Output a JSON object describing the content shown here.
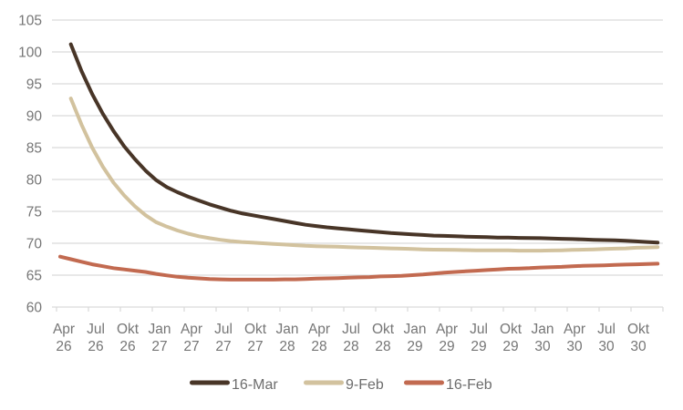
{
  "colors": {
    "background": "#ffffff",
    "gridline": "#d9d9d9",
    "axis_line": "#d9d9d9",
    "tick": "#d9d9d9",
    "axis_label": "#767676",
    "legend_label": "#6d6d6d"
  },
  "chart_data": {
    "type": "line",
    "title": "",
    "legend_position": "bottom",
    "grid": "horizontal",
    "y_axis": {
      "min": 60,
      "max": 105,
      "step": 5,
      "ticks": [
        105,
        100,
        95,
        90,
        85,
        80,
        75,
        70,
        65,
        60
      ]
    },
    "x_axis": {
      "unit": "month",
      "first_month": "Apr 26",
      "tick_labels": [
        {
          "month": "Apr",
          "year": "26"
        },
        {
          "month": "Jul",
          "year": "26"
        },
        {
          "month": "Okt",
          "year": "26"
        },
        {
          "month": "Jan",
          "year": "27"
        },
        {
          "month": "Apr",
          "year": "27"
        },
        {
          "month": "Jul",
          "year": "27"
        },
        {
          "month": "Okt",
          "year": "27"
        },
        {
          "month": "Jan",
          "year": "28"
        },
        {
          "month": "Apr",
          "year": "28"
        },
        {
          "month": "Jul",
          "year": "28"
        },
        {
          "month": "Okt",
          "year": "28"
        },
        {
          "month": "Jan",
          "year": "29"
        },
        {
          "month": "Apr",
          "year": "29"
        },
        {
          "month": "Jul",
          "year": "29"
        },
        {
          "month": "Okt",
          "year": "29"
        },
        {
          "month": "Jan",
          "year": "30"
        },
        {
          "month": "Apr",
          "year": "30"
        },
        {
          "month": "Jul",
          "year": "30"
        },
        {
          "month": "Okt",
          "year": "30"
        }
      ]
    },
    "series": [
      {
        "name": "16-Mar",
        "color": "#483527",
        "start_month_index": 1,
        "values": [
          101.2,
          97.0,
          93.4,
          90.3,
          87.6,
          85.2,
          83.2,
          81.4,
          79.9,
          78.8,
          78.0,
          77.3,
          76.7,
          76.1,
          75.6,
          75.1,
          74.7,
          74.4,
          74.1,
          73.8,
          73.5,
          73.2,
          72.9,
          72.7,
          72.5,
          72.35,
          72.2,
          72.05,
          71.9,
          71.75,
          71.6,
          71.5,
          71.4,
          71.3,
          71.2,
          71.15,
          71.1,
          71.05,
          71.0,
          70.95,
          70.9,
          70.88,
          70.85,
          70.82,
          70.8,
          70.75,
          70.7,
          70.65,
          70.6,
          70.55,
          70.5,
          70.45,
          70.4,
          70.3,
          70.2,
          70.1
        ]
      },
      {
        "name": "9-Feb",
        "color": "#d2c29e",
        "start_month_index": 1,
        "values": [
          92.7,
          88.6,
          85.0,
          82.0,
          79.5,
          77.5,
          75.8,
          74.4,
          73.3,
          72.6,
          72.0,
          71.5,
          71.1,
          70.8,
          70.55,
          70.35,
          70.2,
          70.1,
          70.0,
          69.9,
          69.8,
          69.7,
          69.6,
          69.55,
          69.5,
          69.45,
          69.4,
          69.35,
          69.3,
          69.25,
          69.2,
          69.15,
          69.1,
          69.05,
          69.0,
          68.98,
          68.95,
          68.93,
          68.9,
          68.9,
          68.88,
          68.88,
          68.85,
          68.85,
          68.85,
          68.87,
          68.9,
          68.95,
          69.0,
          69.05,
          69.1,
          69.15,
          69.2,
          69.3,
          69.35,
          69.4
        ]
      },
      {
        "name": "16-Feb",
        "color": "#c26a50",
        "start_month_index": 0,
        "values": [
          67.9,
          67.5,
          67.1,
          66.7,
          66.4,
          66.1,
          65.9,
          65.7,
          65.5,
          65.2,
          64.95,
          64.75,
          64.6,
          64.5,
          64.4,
          64.35,
          64.3,
          64.3,
          64.3,
          64.3,
          64.3,
          64.35,
          64.35,
          64.4,
          64.45,
          64.5,
          64.55,
          64.6,
          64.65,
          64.7,
          64.8,
          64.85,
          64.9,
          65.0,
          65.1,
          65.25,
          65.4,
          65.5,
          65.6,
          65.7,
          65.8,
          65.9,
          66.0,
          66.05,
          66.1,
          66.2,
          66.25,
          66.3,
          66.4,
          66.45,
          66.5,
          66.55,
          66.6,
          66.65,
          66.7,
          66.75,
          66.8
        ]
      }
    ]
  }
}
